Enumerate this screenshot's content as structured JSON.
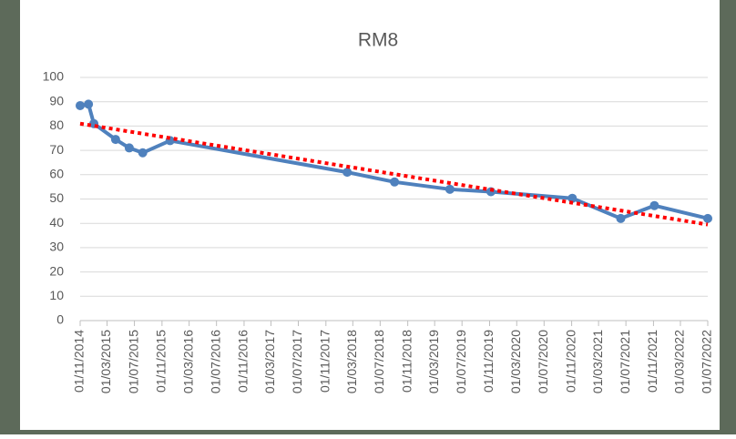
{
  "chart_data": {
    "type": "line",
    "title": "RM8",
    "x": [
      "01/11/2014",
      "08/12/2014",
      "01/01/2015",
      "08/04/2015",
      "08/06/2015",
      "07/08/2015",
      "07/12/2015",
      "04/02/2018",
      "03/09/2018",
      "08/05/2019",
      "07/11/2019",
      "04/11/2020",
      "08/06/2021",
      "05/11/2021",
      "01/07/2022"
    ],
    "series": [
      {
        "color": "#4f81bd",
        "values": [
          88.4,
          89,
          81,
          74.5,
          71,
          69,
          74,
          61,
          57,
          54,
          53,
          50.3,
          42,
          47.3,
          42
        ]
      }
    ],
    "trendline": {
      "color": "#ff0000",
      "x": [
        "01/11/2014",
        "01/07/2022"
      ],
      "values": [
        81,
        39.5
      ]
    },
    "xticks": [
      "01/11/2014",
      "01/03/2015",
      "01/07/2015",
      "01/11/2015",
      "01/03/2016",
      "01/07/2016",
      "01/11/2016",
      "01/03/2017",
      "01/07/2017",
      "01/11/2017",
      "01/03/2018",
      "01/07/2018",
      "01/11/2018",
      "01/03/2019",
      "01/07/2019",
      "01/11/2019",
      "01/03/2020",
      "01/07/2020",
      "01/11/2020",
      "01/03/2021",
      "01/07/2021",
      "01/11/2021",
      "01/03/2022",
      "01/07/2022"
    ],
    "xlim": [
      "01/11/2014",
      "01/07/2022"
    ],
    "ylim": [
      0,
      100
    ],
    "yticks": [
      0,
      10,
      20,
      30,
      40,
      50,
      60,
      70,
      80,
      90,
      100
    ],
    "grid": true
  }
}
